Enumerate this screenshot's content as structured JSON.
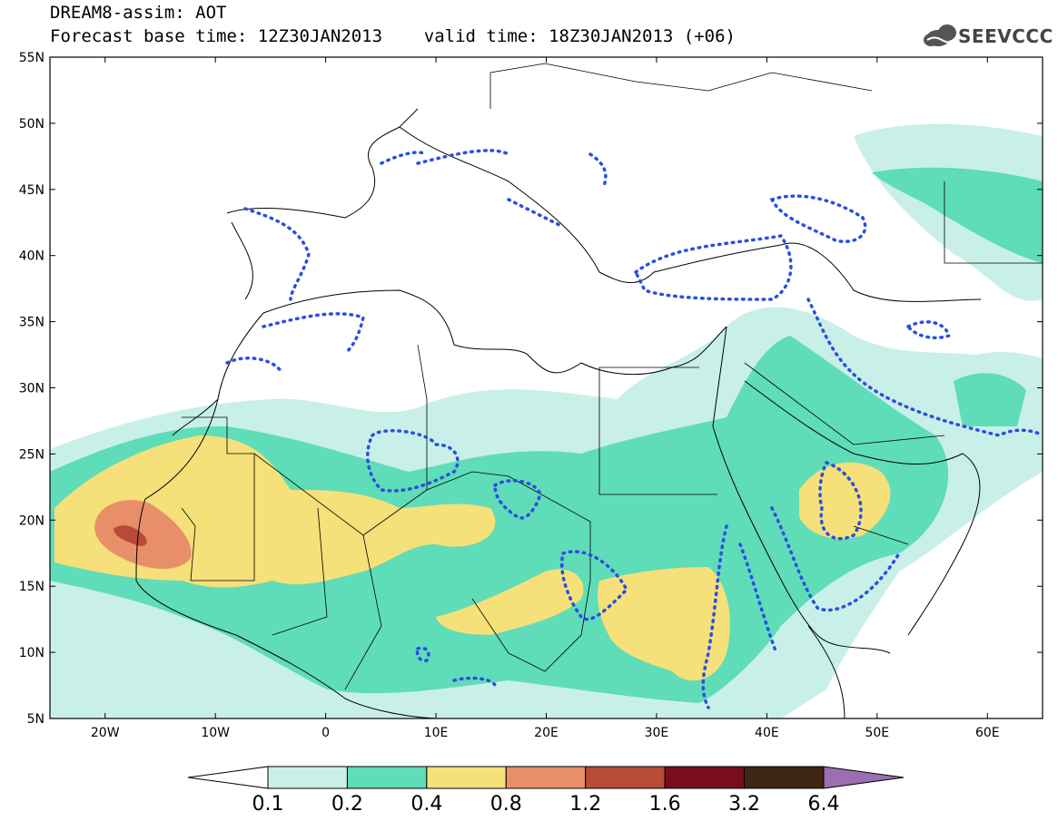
{
  "header": {
    "line1": "DREAM8-assim: AOT",
    "line2": "Forecast base time: 12Z30JAN2013    valid time: 18Z30JAN2013 (+06)",
    "logo_text": "SEEVCCC"
  },
  "map": {
    "lat_labels": [
      "55N",
      "50N",
      "45N",
      "40N",
      "35N",
      "30N",
      "25N",
      "20N",
      "15N",
      "10N",
      "5N"
    ],
    "lat_values": [
      55,
      50,
      45,
      40,
      35,
      30,
      25,
      20,
      15,
      10,
      5
    ],
    "lon_labels": [
      "20W",
      "10W",
      "0",
      "10E",
      "20E",
      "30E",
      "40E",
      "50E",
      "60E"
    ],
    "lon_values": [
      -20,
      -10,
      0,
      10,
      20,
      30,
      40,
      50,
      60
    ],
    "lon_range": [
      -25,
      65
    ],
    "lat_range": [
      5,
      55
    ]
  },
  "colorbar": {
    "labels": [
      "0.1",
      "0.2",
      "0.4",
      "0.8",
      "1.2",
      "1.6",
      "3.2",
      "6.4"
    ],
    "colors": [
      "#ffffff",
      "#c8f0e8",
      "#5fdcb8",
      "#f5e07a",
      "#e88e68",
      "#b84a38",
      "#7a0d1c",
      "#3f2714",
      "#9b6fb0"
    ]
  }
}
